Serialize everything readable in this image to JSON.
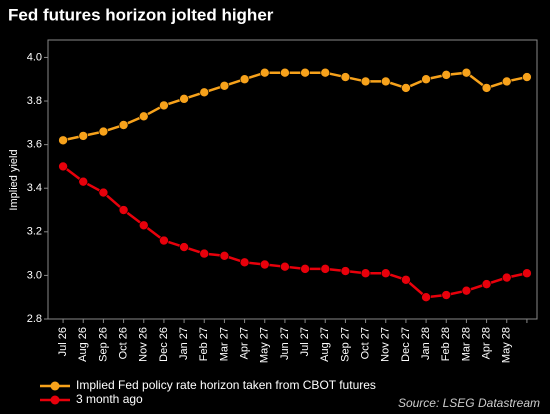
{
  "chart_data": {
    "type": "line",
    "title": "Fed futures horizon jolted higher",
    "y_label": "Implied yield",
    "source": "Source: LSEG Datastream",
    "categories": [
      "Jul 26",
      "Aug 26",
      "Sep 26",
      "Oct 26",
      "Nov 26",
      "Dec 26",
      "Jan 27",
      "Feb 27",
      "Mar 27",
      "Apr 27",
      "May 27",
      "Jun 27",
      "Jul 27",
      "Aug 27",
      "Sep 27",
      "Oct 27",
      "Nov 27",
      "Dec 27",
      "Jan 28",
      "Feb 28",
      "Mar 28",
      "Apr 28",
      "May 28",
      null
    ],
    "series": [
      {
        "name": "Implied Fed policy rate horizon taken from CBOT futures",
        "color": "#f7a21b",
        "values": [
          3.62,
          3.64,
          3.66,
          3.69,
          3.73,
          3.78,
          3.81,
          3.84,
          3.87,
          3.9,
          3.93,
          3.93,
          3.93,
          3.93,
          3.91,
          3.89,
          3.89,
          3.86,
          3.9,
          3.92,
          3.93,
          3.86,
          3.89,
          3.91
        ]
      },
      {
        "name": "3 month ago",
        "color": "#e8000b",
        "values": [
          3.5,
          3.43,
          3.38,
          3.3,
          3.23,
          3.16,
          3.13,
          3.1,
          3.09,
          3.06,
          3.05,
          3.04,
          3.03,
          3.03,
          3.02,
          3.01,
          3.01,
          2.98,
          2.9,
          2.91,
          2.93,
          2.96,
          2.99,
          3.01
        ]
      }
    ],
    "ylim": [
      2.8,
      4.08
    ],
    "yticks": [
      2.8,
      {
        "value": 3,
        "label": "3.0"
      },
      3.2,
      3.4,
      3.6,
      3.8,
      {
        "value": 4,
        "label": "4.0"
      }
    ],
    "grid": false
  }
}
